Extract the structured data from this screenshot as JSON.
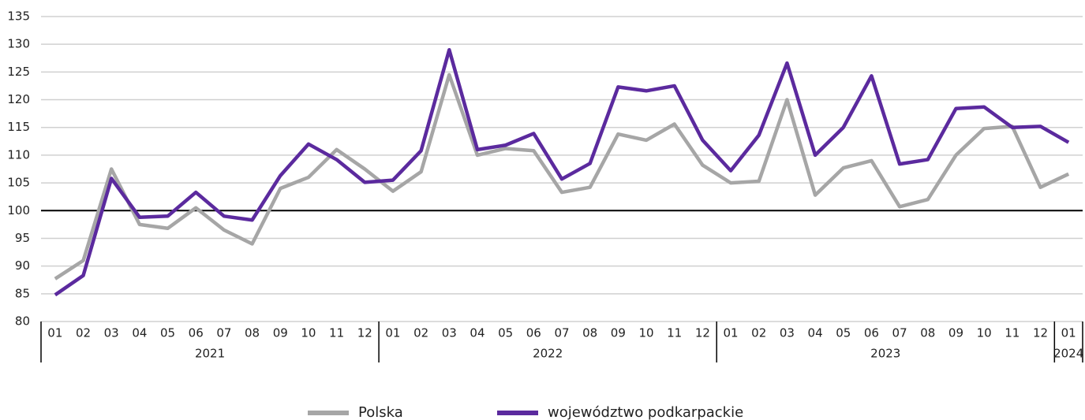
{
  "chart_data": {
    "type": "line",
    "categories": [
      "01",
      "02",
      "03",
      "04",
      "05",
      "06",
      "07",
      "08",
      "09",
      "10",
      "11",
      "12",
      "01",
      "02",
      "03",
      "04",
      "05",
      "06",
      "07",
      "08",
      "09",
      "10",
      "11",
      "12",
      "01",
      "02",
      "03",
      "04",
      "05",
      "06",
      "07",
      "08",
      "09",
      "10",
      "11",
      "12",
      "01"
    ],
    "category_groups": [
      {
        "label": "2021",
        "size": 12
      },
      {
        "label": "2022",
        "size": 12
      },
      {
        "label": "2023",
        "size": 12
      },
      {
        "label": "2024",
        "size": 1
      }
    ],
    "series": [
      {
        "name": "Polska",
        "color": "#a6a6a6",
        "values": [
          87.7,
          91,
          107.5,
          97.5,
          96.8,
          100.5,
          96.5,
          94,
          104,
          106,
          111,
          107.5,
          103.5,
          107,
          124.5,
          110,
          111.2,
          110.8,
          103.3,
          104.2,
          113.8,
          112.7,
          115.6,
          108.2,
          105,
          105.3,
          120,
          102.8,
          107.7,
          109,
          100.7,
          102,
          110,
          114.8,
          115.2,
          104.2,
          106.6
        ]
      },
      {
        "name": "województwo podkarpackie",
        "color": "#5b2a9e",
        "values": [
          84.8,
          88.3,
          105.8,
          98.8,
          99,
          103.3,
          99,
          98.3,
          106.3,
          112,
          109.2,
          105.1,
          105.5,
          110.8,
          129,
          111,
          111.8,
          113.9,
          105.7,
          108.5,
          122.3,
          121.6,
          122.5,
          112.7,
          107.2,
          113.6,
          126.6,
          110,
          115,
          124.3,
          108.4,
          109.2,
          118.4,
          118.7,
          115,
          115.2,
          112.3
        ]
      }
    ],
    "ylim": [
      80,
      135
    ],
    "yticks": [
      80,
      85,
      90,
      95,
      100,
      105,
      110,
      115,
      120,
      125,
      130,
      135
    ],
    "grid": true,
    "reference_line": 100,
    "legend": "bottom"
  }
}
